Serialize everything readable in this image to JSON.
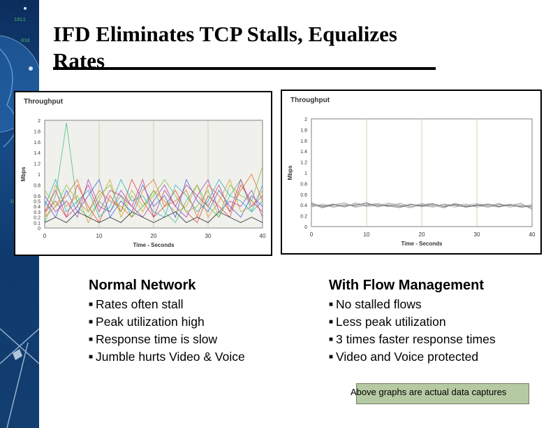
{
  "slide": {
    "title": "IFD Eliminates TCP Stalls, Equalizes Rates",
    "title_line1": "IFD Eliminates TCP Stalls, Equalizes",
    "title_line2": "Rates",
    "note": "Above graphs are actual data captures"
  },
  "columns": [
    {
      "heading": "Normal Network",
      "bullets": [
        "Rates often stall",
        "Peak utilization high",
        "Response time is slow",
        "Jumble hurts Video & Voice"
      ]
    },
    {
      "heading": "With Flow Management",
      "bullets": [
        "No stalled flows",
        "Less peak utilization",
        "3 times faster response times",
        "Video and Voice protected"
      ]
    }
  ],
  "chart_data": [
    {
      "type": "line",
      "title": "Throughput",
      "xlabel": "Time - Seconds",
      "ylabel": "Mbps",
      "xlim": [
        0,
        40
      ],
      "ylim": [
        0,
        2
      ],
      "x_ticks": [
        "0",
        "10",
        "20",
        "30",
        "40"
      ],
      "y_ticks": [
        "0",
        "0.1",
        "0.2",
        "0.3",
        "0.4",
        "0.5",
        "0.6",
        "0.7",
        "0.8",
        "0.9",
        "1",
        "1.1",
        "1.2",
        "1.3",
        "1.4",
        "1.5",
        "1.6",
        "1.7",
        "1.8",
        "1.9",
        "2"
      ],
      "y_tick_labels_shown": [
        "0",
        "0.1",
        "0.2",
        "0.3",
        "0.4",
        "0.5",
        "0.6",
        "0.8",
        "1",
        "1.2",
        "1.4",
        "1.6",
        "1.8",
        "2"
      ],
      "grid": "vertical",
      "plot_background": "#f0f0ec",
      "series_style": "many colored flows, frequent drops to zero",
      "series": [
        {
          "color": "#3fbf7f",
          "values": [
            0.1,
            0.6,
            1.95,
            0.4,
            0.2,
            0.5,
            0.3,
            0.6,
            0.2,
            0.4,
            0.7,
            0.3,
            0.1,
            0.5,
            0.8,
            0.4,
            0.2,
            0.6,
            0.9,
            0.3,
            0.5
          ]
        },
        {
          "color": "#e04040",
          "values": [
            0.3,
            0.5,
            0.2,
            0.8,
            0.4,
            0.1,
            0.6,
            0.3,
            0.9,
            0.5,
            0.2,
            0.4,
            0.7,
            0.3,
            0.1,
            0.6,
            0.4,
            0.2,
            0.8,
            0.5,
            0.3
          ]
        },
        {
          "color": "#4060e0",
          "values": [
            0.5,
            0.2,
            0.7,
            0.3,
            0.6,
            0.9,
            0.2,
            0.5,
            0.3,
            0.8,
            0.4,
            0.6,
            0.2,
            0.9,
            0.5,
            0.3,
            0.7,
            0.4,
            0.2,
            0.6,
            0.4
          ]
        },
        {
          "color": "#d0a020",
          "values": [
            0.2,
            0.8,
            0.4,
            0.6,
            0.1,
            0.5,
            0.9,
            0.2,
            0.6,
            0.3,
            0.7,
            0.5,
            0.3,
            0.4,
            0.8,
            0.2,
            0.5,
            0.9,
            0.3,
            0.4,
            0.7
          ]
        },
        {
          "color": "#a040c0",
          "values": [
            0.6,
            0.3,
            0.5,
            0.2,
            0.9,
            0.4,
            0.3,
            0.7,
            0.4,
            0.2,
            0.5,
            0.8,
            0.4,
            0.2,
            0.6,
            0.9,
            0.3,
            0.5,
            0.4,
            0.7,
            0.2
          ]
        },
        {
          "color": "#20b0c0",
          "values": [
            0.4,
            0.9,
            0.3,
            0.5,
            0.7,
            0.2,
            0.4,
            0.9,
            0.5,
            0.6,
            0.3,
            0.2,
            0.8,
            0.6,
            0.3,
            0.5,
            0.9,
            0.6,
            0.5,
            0.3,
            0.8
          ]
        },
        {
          "color": "#e07020",
          "values": [
            0.2,
            0.4,
            0.6,
            0.9,
            0.3,
            0.7,
            0.5,
            0.4,
            0.2,
            0.7,
            0.9,
            0.4,
            0.5,
            0.7,
            0.2,
            0.8,
            0.6,
            0.3,
            0.7,
            1.0,
            0.5
          ]
        },
        {
          "color": "#202020",
          "values": [
            0.1,
            0.2,
            0.1,
            0.3,
            0.2,
            0.1,
            0.2,
            0.1,
            0.3,
            0.2,
            0.1,
            0.2,
            0.3,
            0.1,
            0.2,
            0.1,
            0.3,
            0.2,
            0.1,
            0.2,
            0.1
          ]
        },
        {
          "color": "#80c040",
          "values": [
            0.7,
            0.4,
            0.8,
            0.5,
            0.3,
            0.6,
            0.8,
            0.3,
            0.7,
            0.4,
            0.6,
            0.9,
            0.6,
            0.3,
            0.4,
            0.7,
            0.2,
            0.8,
            0.6,
            0.5,
            1.15
          ]
        },
        {
          "color": "#c04080",
          "values": [
            0.3,
            0.7,
            0.2,
            0.4,
            0.8,
            0.3,
            0.7,
            0.6,
            0.4,
            0.9,
            0.2,
            0.7,
            0.4,
            0.8,
            0.6,
            0.4,
            0.8,
            0.3,
            0.9,
            0.4,
            0.6
          ]
        }
      ]
    },
    {
      "type": "line",
      "title": "Throughput",
      "xlabel": "Time - Seconds",
      "ylabel": "Mbps",
      "xlim": [
        0,
        40
      ],
      "ylim": [
        0,
        2
      ],
      "x_ticks": [
        "0",
        "10",
        "20",
        "30",
        "40"
      ],
      "y_ticks": [
        "0",
        "0.2",
        "0.4",
        "0.6",
        "0.8",
        "1",
        "1.2",
        "1.4",
        "1.6",
        "1.8",
        "2"
      ],
      "grid": "vertical",
      "plot_background": "#ffffff",
      "series_style": "many gray flows clustered near 0.35-0.45 Mbps",
      "series": [
        {
          "color": "#888888",
          "values": [
            0.4,
            0.38,
            0.42,
            0.36,
            0.44,
            0.39,
            0.41,
            0.37,
            0.43,
            0.38,
            0.4,
            0.36,
            0.42,
            0.39,
            0.37,
            0.41,
            0.38,
            0.43,
            0.36,
            0.4,
            0.35
          ]
        },
        {
          "color": "#999999",
          "values": [
            0.36,
            0.42,
            0.37,
            0.41,
            0.38,
            0.45,
            0.36,
            0.42,
            0.39,
            0.35,
            0.41,
            0.43,
            0.37,
            0.4,
            0.42,
            0.36,
            0.41,
            0.38,
            0.42,
            0.37,
            0.39
          ]
        },
        {
          "color": "#777777",
          "values": [
            0.42,
            0.35,
            0.4,
            0.44,
            0.36,
            0.4,
            0.43,
            0.38,
            0.35,
            0.42,
            0.37,
            0.4,
            0.35,
            0.43,
            0.38,
            0.4,
            0.36,
            0.41,
            0.39,
            0.43,
            0.32
          ]
        },
        {
          "color": "#aaaaaa",
          "values": [
            0.38,
            0.4,
            0.36,
            0.39,
            0.42,
            0.37,
            0.39,
            0.44,
            0.4,
            0.37,
            0.43,
            0.38,
            0.41,
            0.36,
            0.4,
            0.43,
            0.39,
            0.36,
            0.41,
            0.38,
            0.41
          ]
        },
        {
          "color": "#666666",
          "values": [
            0.44,
            0.37,
            0.41,
            0.38,
            0.4,
            0.43,
            0.38,
            0.4,
            0.37,
            0.41,
            0.39,
            0.42,
            0.38,
            0.41,
            0.36,
            0.39,
            0.42,
            0.37,
            0.4,
            0.36,
            0.38
          ]
        }
      ]
    }
  ]
}
